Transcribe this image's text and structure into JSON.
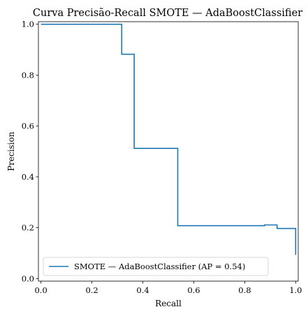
{
  "chart_data": {
    "type": "line",
    "step": true,
    "title": "Curva Precisão-Recall SMOTE — AdaBoostClassifier",
    "xlabel": "Recall",
    "ylabel": "Precision",
    "xlim": [
      -0.01,
      1.01
    ],
    "ylim": [
      -0.01,
      1.01
    ],
    "xticks": [
      "0.0",
      "0.2",
      "0.4",
      "0.6",
      "0.8",
      "1.0"
    ],
    "yticks": [
      "0.0",
      "0.2",
      "0.4",
      "0.6",
      "0.8",
      "1.0"
    ],
    "grid": false,
    "legend_position": "lower-left",
    "series": [
      {
        "name": "SMOTE — AdaBoostClassifier (AP = 0.54)",
        "color": "#1f77b4",
        "x": [
          0.0,
          0.317,
          0.317,
          0.366,
          0.366,
          0.537,
          0.537,
          0.878,
          0.878,
          0.927,
          0.927,
          1.0,
          1.0
        ],
        "y": [
          1.0,
          1.0,
          0.882,
          0.882,
          0.512,
          0.512,
          0.208,
          0.208,
          0.211,
          0.211,
          0.197,
          0.197,
          0.093
        ]
      }
    ]
  }
}
